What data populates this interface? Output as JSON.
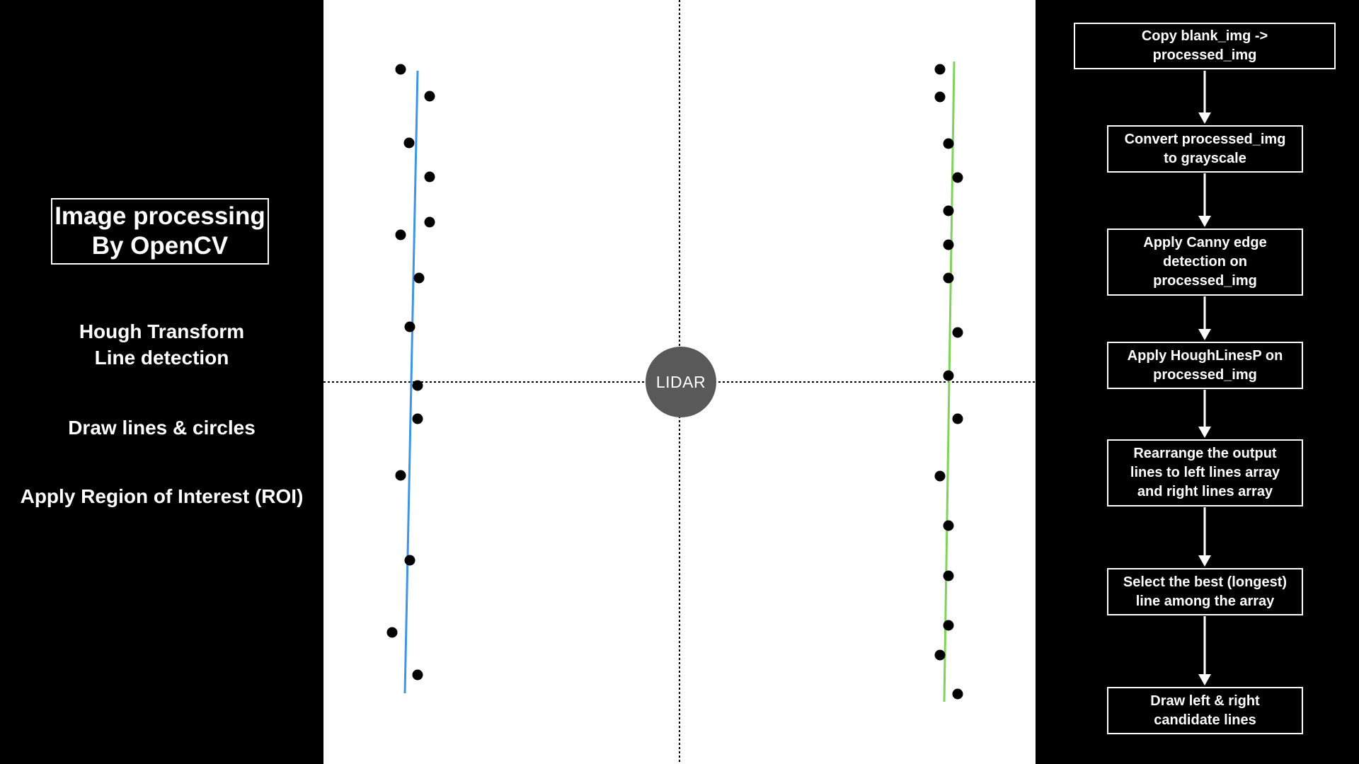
{
  "left_panel": {
    "title_line1": "Image processing",
    "title_line2": "By OpenCV",
    "steps": [
      {
        "line1": "Hough  Transform",
        "line2": "Line detection"
      },
      {
        "line1": "Draw lines & circles"
      },
      {
        "line1": "Apply Region of Interest (ROI)"
      }
    ]
  },
  "center": {
    "lidar_label": "LIDAR",
    "left_line_color": "#3d95e5",
    "right_line_color": "#7fd35a",
    "point_color": "#000000"
  },
  "flowchart": {
    "steps": [
      "Copy blank_img ->\nprocessed_img",
      "Convert processed_img\nto grayscale",
      "Apply Canny edge\ndetection on\nprocessed_img",
      "Apply HoughLinesP on\nprocessed_img",
      "Rearrange the output\nlines to left lines array\nand right lines array",
      "Select the best (longest)\nline among the array",
      "Draw left & right\ncandidate lines"
    ]
  }
}
